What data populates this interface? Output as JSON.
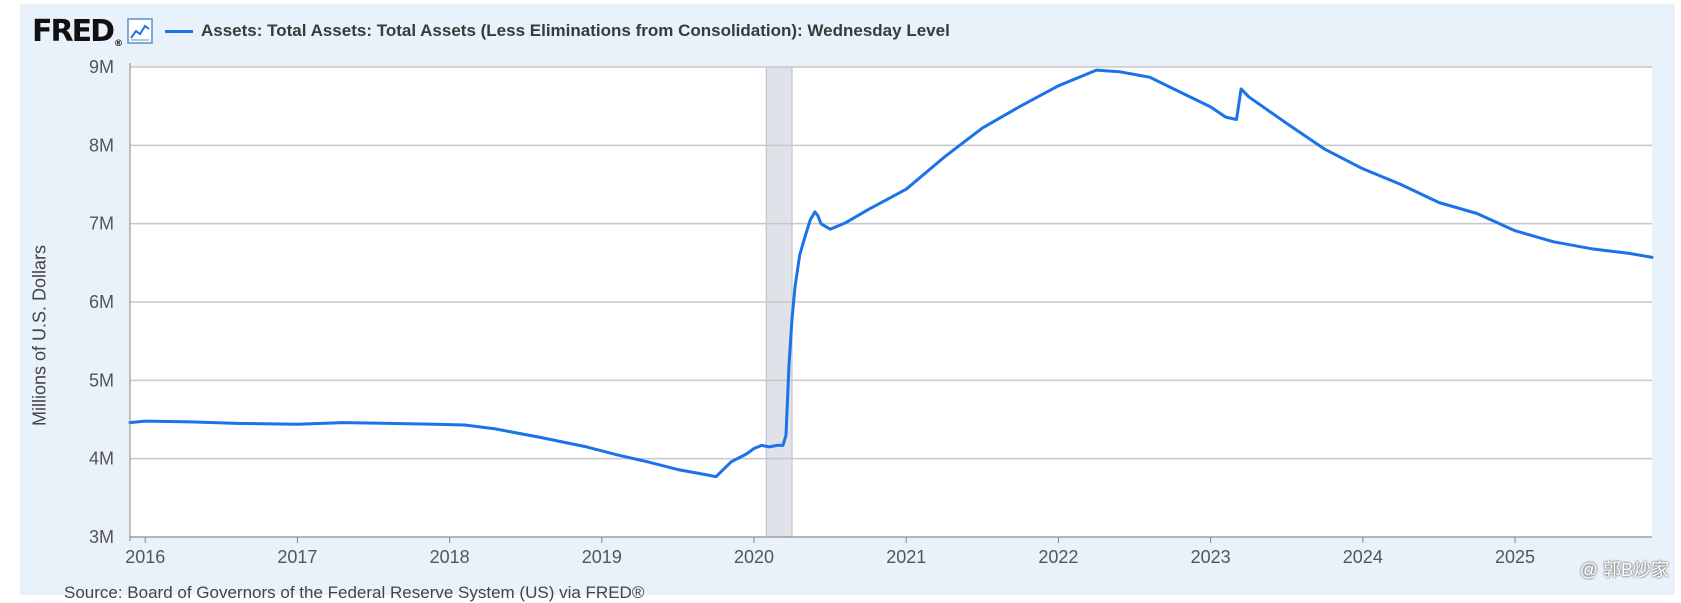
{
  "header": {
    "logo_text": "FRED",
    "logo_reg": "®",
    "logo_icon": "line-chart-icon",
    "series_label": "Assets: Total Assets: Total Assets (Less Eliminations from Consolidation): Wednesday Level"
  },
  "footer": {
    "source": "Source: Board of Governors of the Federal Reserve System (US) via FRED®",
    "watermark": "@ 郭B炒家"
  },
  "colors": {
    "series": "#1a73e8",
    "recession": "#dfe3e9",
    "grid": "#c8c8c8",
    "panel": "#e9f1fa"
  },
  "chart_data": {
    "type": "line",
    "ylabel": "Millions of U.S. Dollars",
    "xlim": [
      2015.9,
      2025.9
    ],
    "ylim": [
      3,
      9
    ],
    "x_ticks": [
      2016,
      2017,
      2018,
      2019,
      2020,
      2021,
      2022,
      2023,
      2024,
      2025
    ],
    "x_tick_labels": [
      "2016",
      "2017",
      "2018",
      "2019",
      "2020",
      "2021",
      "2022",
      "2023",
      "2024",
      "2025"
    ],
    "y_ticks": [
      3,
      4,
      5,
      6,
      7,
      8,
      9
    ],
    "y_tick_labels": [
      "3M",
      "4M",
      "5M",
      "6M",
      "7M",
      "8M",
      "9M"
    ],
    "grid": true,
    "recession_shading": [
      [
        2020.08,
        2020.25
      ]
    ],
    "series": [
      {
        "x": [
          2015.9,
          2016.0,
          2016.3,
          2016.6,
          2017.0,
          2017.3,
          2017.6,
          2017.9,
          2018.1,
          2018.3,
          2018.6,
          2018.9,
          2019.1,
          2019.3,
          2019.5,
          2019.7,
          2019.75,
          2019.85,
          2019.95,
          2020.0,
          2020.05,
          2020.1,
          2020.15,
          2020.19,
          2020.21,
          2020.23,
          2020.25,
          2020.27,
          2020.3,
          2020.33,
          2020.37,
          2020.4,
          2020.42,
          2020.44,
          2020.5,
          2020.6,
          2020.75,
          2021.0,
          2021.25,
          2021.5,
          2021.75,
          2022.0,
          2022.15,
          2022.25,
          2022.4,
          2022.6,
          2022.8,
          2023.0,
          2023.1,
          2023.17,
          2023.2,
          2023.25,
          2023.5,
          2023.75,
          2024.0,
          2024.25,
          2024.5,
          2024.75,
          2025.0,
          2025.25,
          2025.5,
          2025.75,
          2025.9
        ],
        "y": [
          4.46,
          4.48,
          4.47,
          4.45,
          4.44,
          4.46,
          4.45,
          4.44,
          4.43,
          4.38,
          4.27,
          4.15,
          4.05,
          3.96,
          3.86,
          3.79,
          3.77,
          3.96,
          4.06,
          4.13,
          4.17,
          4.15,
          4.17,
          4.17,
          4.3,
          5.2,
          5.8,
          6.2,
          6.6,
          6.8,
          7.05,
          7.15,
          7.1,
          7.0,
          6.93,
          7.01,
          7.18,
          7.44,
          7.85,
          8.22,
          8.5,
          8.76,
          8.88,
          8.96,
          8.94,
          8.87,
          8.68,
          8.49,
          8.36,
          8.33,
          8.72,
          8.62,
          8.28,
          7.95,
          7.7,
          7.5,
          7.27,
          7.13,
          6.91,
          6.77,
          6.68,
          6.62,
          6.57
        ]
      }
    ]
  }
}
